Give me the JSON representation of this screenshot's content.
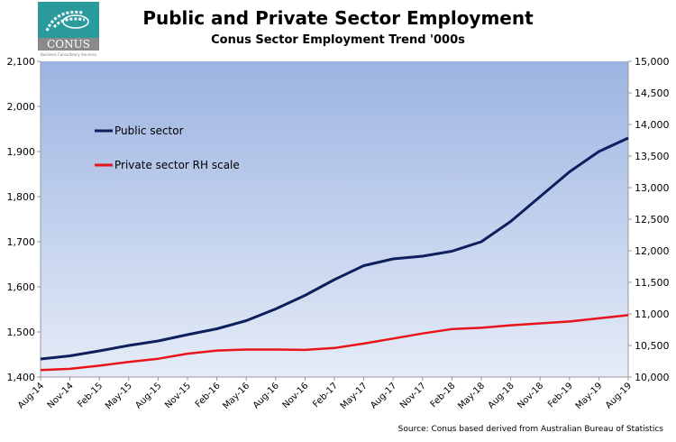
{
  "logo": {
    "name": "CONUS",
    "tagline": "Business Consultancy Services"
  },
  "chart_data": {
    "type": "line",
    "title": "Public and Private Sector Employment",
    "subtitle": "Conus Sector Employment Trend '000s",
    "source": "Source: Conus based derived from Australian Bureau of Statistics",
    "categories": [
      "Aug-14",
      "Nov-14",
      "Feb-15",
      "May-15",
      "Aug-15",
      "Nov-15",
      "Feb-16",
      "May-16",
      "Aug-16",
      "Nov-16",
      "Feb-17",
      "May-17",
      "Aug-17",
      "Nov-17",
      "Feb-18",
      "May-18",
      "Aug-18",
      "Nov-18",
      "Feb-19",
      "May-19",
      "Aug-19"
    ],
    "y_left": {
      "min": 1400,
      "max": 2100,
      "ticks": [
        "1,400",
        "1,500",
        "1,600",
        "1,700",
        "1,800",
        "1,900",
        "2,000",
        "2,100"
      ]
    },
    "y_right": {
      "min": 10000,
      "max": 15000,
      "ticks": [
        "10,000",
        "10,500",
        "11,000",
        "11,500",
        "12,000",
        "12,500",
        "13,000",
        "13,500",
        "14,000",
        "14,500",
        "15,000"
      ]
    },
    "legend_placement": "top-left inside",
    "series": [
      {
        "name": "Public sector",
        "axis": "left",
        "color": "#0d1f5c",
        "values": [
          1440,
          1447,
          1458,
          1470,
          1480,
          1494,
          1507,
          1525,
          1551,
          1581,
          1616,
          1647,
          1662,
          1668,
          1679,
          1700,
          1745,
          1800,
          1855,
          1900,
          1930
        ]
      },
      {
        "name": "Private sector RH scale",
        "axis": "right",
        "color": "#e8141c",
        "values": [
          10110,
          10130,
          10180,
          10240,
          10290,
          10370,
          10420,
          10435,
          10435,
          10430,
          10460,
          10530,
          10610,
          10690,
          10760,
          10780,
          10820,
          10850,
          10880,
          10930,
          10980
        ]
      }
    ]
  }
}
